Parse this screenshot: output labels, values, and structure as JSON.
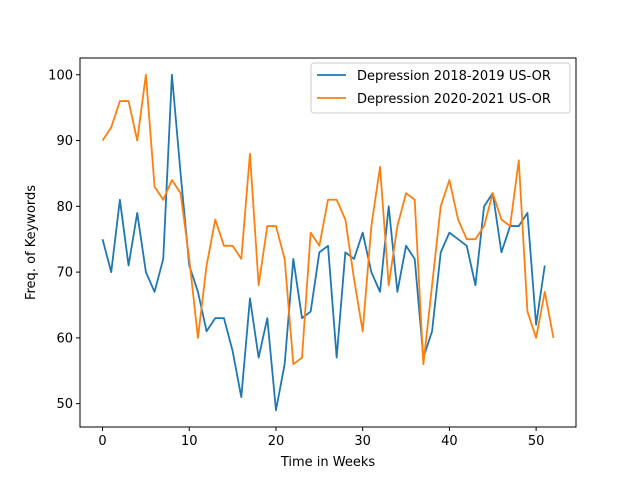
{
  "chart_data": {
    "type": "line",
    "xlabel": "Time in Weeks",
    "ylabel": "Freq. of Keywords",
    "xlim": [
      -2.6,
      54.6
    ],
    "ylim": [
      46.45,
      102.55
    ],
    "xticks": [
      0,
      10,
      20,
      30,
      40,
      50
    ],
    "yticks": [
      50,
      60,
      70,
      80,
      90,
      100
    ],
    "grid": false,
    "legend": "top-right",
    "series": [
      {
        "name": "Depression 2018-2019 US-OR",
        "color": "#1f77b4",
        "x": [
          0,
          1,
          2,
          3,
          4,
          5,
          6,
          7,
          8,
          9,
          10,
          11,
          12,
          13,
          14,
          15,
          16,
          17,
          18,
          19,
          20,
          21,
          22,
          23,
          24,
          25,
          26,
          27,
          28,
          29,
          30,
          31,
          32,
          33,
          34,
          35,
          36,
          37,
          38,
          39,
          40,
          41,
          42,
          43,
          44,
          45,
          46,
          47,
          48,
          49,
          50,
          51
        ],
        "values": [
          75,
          70,
          81,
          71,
          79,
          70,
          67,
          72,
          100,
          85,
          71,
          67,
          61,
          63,
          63,
          58,
          51,
          66,
          57,
          63,
          49,
          56,
          72,
          63,
          64,
          73,
          74,
          57,
          73,
          72,
          76,
          70,
          67,
          80,
          67,
          74,
          72,
          57,
          61,
          73,
          76,
          75,
          74,
          68,
          80,
          82,
          73,
          77,
          77,
          79,
          62,
          71
        ]
      },
      {
        "name": "Depression 2020-2021 US-OR",
        "color": "#ff7f0e",
        "x": [
          0,
          1,
          2,
          3,
          4,
          5,
          6,
          7,
          8,
          9,
          10,
          11,
          12,
          13,
          14,
          15,
          16,
          17,
          18,
          19,
          20,
          21,
          22,
          23,
          24,
          25,
          26,
          27,
          28,
          29,
          30,
          31,
          32,
          33,
          34,
          35,
          36,
          37,
          38,
          39,
          40,
          41,
          42,
          43,
          44,
          45,
          46,
          47,
          48,
          49,
          50,
          51,
          52
        ],
        "values": [
          90,
          92,
          96,
          96,
          90,
          100,
          83,
          81,
          84,
          82,
          72,
          60,
          71,
          78,
          74,
          74,
          72,
          88,
          68,
          77,
          77,
          72,
          56,
          57,
          76,
          74,
          81,
          81,
          78,
          69,
          61,
          77,
          86,
          68,
          77,
          82,
          81,
          56,
          68,
          80,
          84,
          78,
          75,
          75,
          77,
          82,
          78,
          77,
          87,
          64,
          60,
          67,
          60
        ]
      }
    ]
  }
}
